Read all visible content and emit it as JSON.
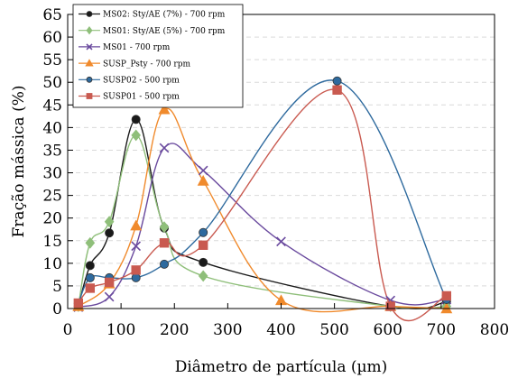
{
  "chart_data": {
    "type": "line",
    "xlabel": "Diâmetro de partícula (µm)",
    "ylabel": "Fração mássica (%)",
    "xlim": [
      0,
      800
    ],
    "ylim": [
      0,
      65
    ],
    "xticks": [
      "0",
      "100",
      "200",
      "300",
      "400",
      "500",
      "600",
      "700",
      "800"
    ],
    "yticks": [
      "0",
      "5",
      "10",
      "15",
      "20",
      "25",
      "30",
      "35",
      "40",
      "45",
      "50",
      "55",
      "60",
      "65"
    ],
    "grid": "horizontal dashed",
    "legend_position": "top-left",
    "series": [
      {
        "name": "MS02: Sty/AE (7%) - 700 rpm",
        "color": "#1a1a1a",
        "marker": "circle",
        "points": [
          [
            20,
            0.5
          ],
          [
            42,
            9.5
          ],
          [
            78,
            16.7
          ],
          [
            128,
            41.8
          ],
          [
            181,
            17.8
          ],
          [
            254,
            10.2
          ],
          [
            605,
            0.5
          ],
          [
            710,
            1.5
          ]
        ]
      },
      {
        "name": "MS01: Sty/AE (5%) - 700 rpm",
        "color": "#8fbf7a",
        "marker": "diamond",
        "points": [
          [
            20,
            0.5
          ],
          [
            42,
            14.5
          ],
          [
            78,
            19.2
          ],
          [
            128,
            38.3
          ],
          [
            181,
            18.0
          ],
          [
            254,
            7.2
          ],
          [
            605,
            0.5
          ],
          [
            710,
            0.5
          ]
        ]
      },
      {
        "name": "MS01 - 700 rpm",
        "color": "#6a4a9e",
        "marker": "x",
        "points": [
          [
            20,
            0.3
          ],
          [
            78,
            2.6
          ],
          [
            128,
            13.8
          ],
          [
            181,
            35.5
          ],
          [
            254,
            30.5
          ],
          [
            400,
            14.8
          ],
          [
            605,
            1.8
          ],
          [
            710,
            2.0
          ]
        ]
      },
      {
        "name": "SUSP_Psty - 700 rpm",
        "color": "#f08a2c",
        "marker": "triangle",
        "points": [
          [
            20,
            0.5
          ],
          [
            78,
            5.5
          ],
          [
            128,
            18.3
          ],
          [
            181,
            44.0
          ],
          [
            254,
            28.2
          ],
          [
            400,
            1.8
          ],
          [
            605,
            0.5
          ],
          [
            710,
            0.0
          ]
        ]
      },
      {
        "name": "SUSP02 - 500 rpm",
        "color": "#2e6a9e",
        "marker": "circle",
        "points": [
          [
            20,
            1.2
          ],
          [
            42,
            6.8
          ],
          [
            78,
            6.8
          ],
          [
            128,
            6.8
          ],
          [
            181,
            9.8
          ],
          [
            254,
            16.8
          ],
          [
            505,
            50.3
          ],
          [
            710,
            2.0
          ]
        ]
      },
      {
        "name": "SUSP01 - 500 rpm",
        "color": "#c95a50",
        "marker": "square",
        "points": [
          [
            20,
            1.2
          ],
          [
            42,
            4.5
          ],
          [
            78,
            5.8
          ],
          [
            128,
            8.5
          ],
          [
            181,
            14.5
          ],
          [
            254,
            14.0
          ],
          [
            505,
            48.3
          ],
          [
            605,
            0.5
          ],
          [
            710,
            2.8
          ]
        ]
      }
    ]
  }
}
